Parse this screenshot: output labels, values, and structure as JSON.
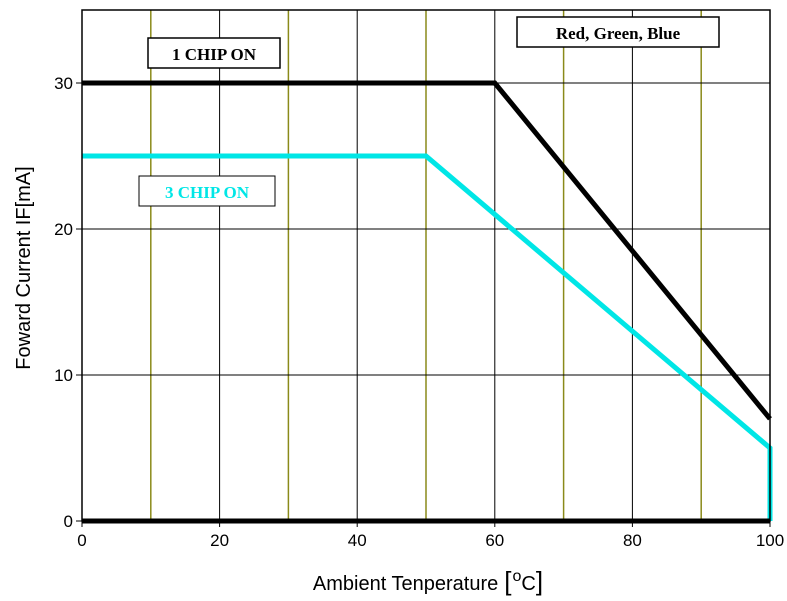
{
  "chart_data": {
    "type": "line",
    "xlabel": "Ambient Tenperature",
    "xlabel_unit_sup": "o",
    "xlabel_unit": "C",
    "ylabel": "Foward Current IF[mA]",
    "xlim": [
      0,
      100
    ],
    "ylim": [
      0,
      35
    ],
    "x_ticks": [
      0,
      20,
      40,
      60,
      80,
      100
    ],
    "y_ticks": [
      0,
      10,
      20,
      30
    ],
    "x_grid_major": [
      20,
      40,
      60,
      80
    ],
    "x_grid_minor": [
      10,
      30,
      50,
      70,
      90
    ],
    "y_grid": [
      10,
      20,
      30
    ],
    "grid": true,
    "series": [
      {
        "name": "1 CHIP ON",
        "color": "#000000",
        "x": [
          0,
          60,
          100
        ],
        "y": [
          30,
          30,
          7
        ]
      },
      {
        "name": "3 CHIP ON",
        "color": "#00e6e6",
        "x": [
          0,
          50,
          100,
          100
        ],
        "y": [
          25,
          25,
          5,
          0
        ]
      }
    ],
    "annotations": [
      {
        "id": "one-chip",
        "text": "1 CHIP ON",
        "color": "#000000"
      },
      {
        "id": "three-chip",
        "text": "3 CHIP ON",
        "color": "#00e6e6"
      },
      {
        "id": "colors",
        "text": "Red, Green, Blue",
        "color": "#000000"
      }
    ]
  }
}
